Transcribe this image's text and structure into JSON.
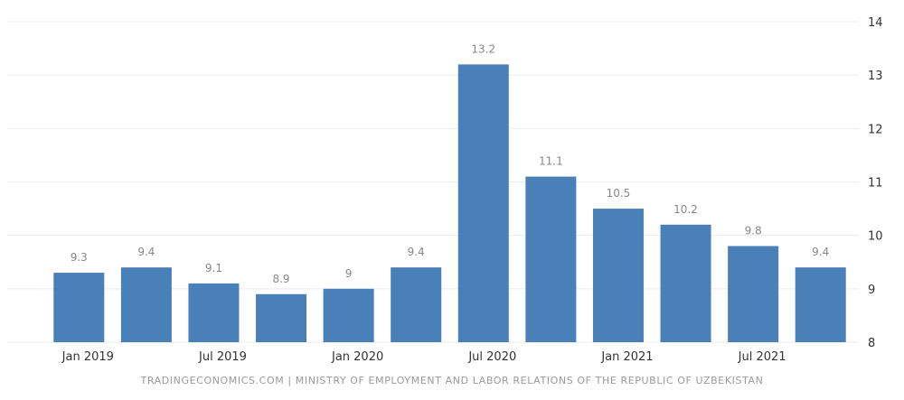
{
  "chart_data": {
    "type": "bar",
    "categories": [
      "Q1 2019",
      "Q2 2019",
      "Q3 2019",
      "Q4 2019",
      "Q1 2020",
      "Q2 2020",
      "Q3 2020",
      "Q4 2020",
      "Q1 2021",
      "Q2 2021",
      "Q3 2021",
      "Q4 2021"
    ],
    "values": [
      9.3,
      9.4,
      9.1,
      8.9,
      9,
      9.4,
      13.2,
      11.1,
      10.5,
      10.2,
      9.8,
      9.4
    ],
    "value_labels": [
      "9.3",
      "9.4",
      "9.1",
      "8.9",
      "9",
      "9.4",
      "13.2",
      "11.1",
      "10.5",
      "10.2",
      "9.8",
      "9.4"
    ],
    "x_tick_labels": [
      "Jan 2019",
      "Jul 2019",
      "Jan 2020",
      "Jul 2020",
      "Jan 2021",
      "Jul 2021"
    ],
    "y_tick_labels": [
      "8",
      "9",
      "10",
      "11",
      "12",
      "13",
      "14"
    ],
    "ylim": [
      8,
      14
    ],
    "grid": true,
    "y_axis_position": "right",
    "bar_color": "#4a80b8",
    "title": "",
    "xlabel": "",
    "ylabel": ""
  },
  "source": {
    "text": "TRADINGECONOMICS.COM | MINISTRY OF EMPLOYMENT AND LABOR RELATIONS OF THE REPUBLIC OF UZBEKISTAN"
  },
  "colors": {
    "bar": "#4a80b8",
    "grid": "#ececec",
    "axis_text": "#333333",
    "label_text": "#888888",
    "source_text": "#9a9a9a"
  }
}
